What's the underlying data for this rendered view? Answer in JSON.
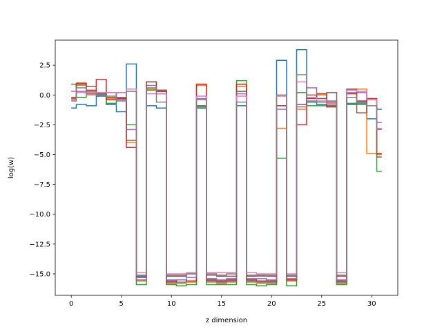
{
  "chart_data": {
    "type": "line",
    "drawstyle": "steps-mid",
    "title": "",
    "xlabel": "z dimension",
    "ylabel": "log(w)",
    "xlim": [
      -1.6,
      32.6
    ],
    "ylim": [
      -16.8,
      4.6
    ],
    "xticks": [
      0,
      5,
      10,
      15,
      20,
      25,
      30
    ],
    "yticks": [
      -15.0,
      -12.5,
      -10.0,
      -7.5,
      -5.0,
      -2.5,
      0.0,
      2.5
    ],
    "ytick_labels": [
      "−15.0",
      "−12.5",
      "−10.0",
      "−7.5",
      "−5.0",
      "−2.5",
      "0.0",
      "2.5"
    ],
    "grid": false,
    "legend": false,
    "x": [
      0,
      1,
      2,
      3,
      4,
      5,
      6,
      7,
      8,
      9,
      10,
      11,
      12,
      13,
      14,
      15,
      16,
      17,
      18,
      19,
      20,
      21,
      22,
      23,
      24,
      25,
      26,
      27,
      28,
      29,
      30,
      31
    ],
    "series": [
      {
        "color": "#1f77b4",
        "values": [
          -1.1,
          -0.8,
          -0.9,
          -0.1,
          -0.8,
          -1.4,
          2.6,
          -15.3,
          -0.9,
          -1.1,
          -15.6,
          -15.7,
          -15.6,
          -1.1,
          -15.6,
          -15.7,
          -15.6,
          -0.9,
          -15.6,
          -15.7,
          -15.7,
          2.9,
          -15.5,
          3.8,
          -0.6,
          -0.8,
          -0.9,
          -15.7,
          -0.8,
          -0.6,
          -2.0,
          -1.2
        ]
      },
      {
        "color": "#ff7f0e",
        "values": [
          -0.4,
          0.8,
          0.2,
          0.1,
          -0.3,
          -0.2,
          -4.0,
          -15.6,
          0.5,
          0.3,
          -15.8,
          -15.8,
          -15.7,
          0.8,
          -15.7,
          -15.8,
          -15.7,
          0.7,
          -15.7,
          -15.8,
          -15.8,
          -2.8,
          -15.6,
          -1.2,
          -0.2,
          0.0,
          -0.8,
          -15.8,
          0.4,
          0.5,
          -4.9,
          -5.0
        ]
      },
      {
        "color": "#2ca02c",
        "values": [
          0.9,
          -0.2,
          0.1,
          0.0,
          -0.7,
          0.2,
          -2.5,
          -15.9,
          0.4,
          0.4,
          -15.9,
          -16.0,
          -15.9,
          -1.0,
          -15.9,
          -15.9,
          -15.9,
          1.2,
          -15.9,
          -16.0,
          -15.9,
          -5.3,
          -16.0,
          0.2,
          -0.9,
          -0.9,
          -1.0,
          -15.9,
          -0.7,
          -0.8,
          -0.4,
          -6.4
        ]
      },
      {
        "color": "#d62728",
        "values": [
          -0.2,
          1.0,
          0.4,
          1.3,
          -0.4,
          -0.3,
          -4.4,
          -15.5,
          1.1,
          0.3,
          -15.7,
          -15.5,
          -15.6,
          0.9,
          -15.5,
          -15.6,
          -15.5,
          0.9,
          -15.5,
          -15.6,
          -15.6,
          -0.9,
          -15.5,
          -2.5,
          -0.3,
          0.1,
          -1.0,
          -15.6,
          0.1,
          -0.5,
          -0.3,
          -4.9
        ]
      },
      {
        "color": "#9467bd",
        "values": [
          -0.3,
          0.3,
          0.3,
          0.2,
          0.2,
          -0.4,
          -2.9,
          -15.5,
          0.8,
          0.1,
          -15.5,
          -15.5,
          -15.3,
          -0.3,
          -15.4,
          -15.5,
          -15.4,
          0.1,
          -15.4,
          -15.4,
          -15.5,
          -1.2,
          -15.4,
          -1.0,
          0.6,
          -0.3,
          -0.6,
          -15.5,
          0.2,
          0.2,
          -0.4,
          -2.3
        ]
      },
      {
        "color": "#8c564b",
        "values": [
          0.3,
          0.9,
          0.7,
          0.1,
          -0.2,
          -0.2,
          -3.8,
          -15.2,
          1.1,
          0.4,
          -15.2,
          -15.2,
          -15.0,
          -0.9,
          -15.1,
          -15.2,
          -15.2,
          0.3,
          -15.2,
          -15.1,
          -15.2,
          -0.9,
          -15.2,
          -0.8,
          0.0,
          -0.3,
          0.2,
          -15.2,
          0.5,
          -1.5,
          -0.4,
          -5.2
        ]
      },
      {
        "color": "#e377c2",
        "values": [
          0.3,
          0.2,
          0.0,
          0.2,
          0.2,
          0.2,
          0.5,
          -14.9,
          0.1,
          0.1,
          -15.0,
          -15.0,
          -14.9,
          -0.1,
          -14.9,
          -14.9,
          -14.9,
          -0.1,
          -14.9,
          -15.0,
          -15.0,
          -0.1,
          -15.0,
          1.1,
          -0.2,
          -0.5,
          -0.7,
          -14.9,
          0.4,
          0.3,
          -0.4,
          -2.8
        ]
      },
      {
        "color": "#7f7f7f",
        "values": [
          -0.5,
          0.6,
          0.1,
          0.0,
          -0.1,
          -0.5,
          0.3,
          -15.1,
          0.6,
          -0.6,
          -15.1,
          -15.1,
          -15.0,
          -0.4,
          -15.0,
          -15.1,
          -15.0,
          -0.6,
          -15.1,
          -15.2,
          -15.1,
          0.0,
          -15.1,
          1.7,
          -0.5,
          -0.6,
          -0.5,
          -15.1,
          -0.2,
          -0.7,
          -0.9,
          -2.9
        ]
      }
    ]
  }
}
